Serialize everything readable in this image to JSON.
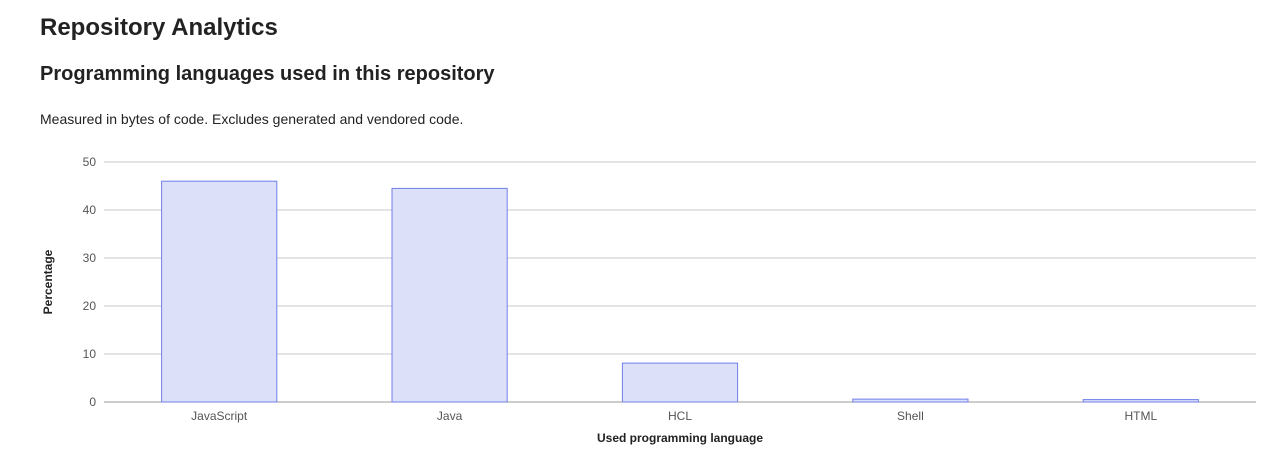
{
  "page": {
    "title": "Repository Analytics",
    "section_title": "Programming languages used in this repository",
    "description": "Measured in bytes of code. Excludes generated and vendored code."
  },
  "colors": {
    "bar_fill": "#dde0f9",
    "bar_stroke": "#6f7fe8",
    "gridline": "#c8c8c8",
    "tick_text": "#555555"
  },
  "chart_data": {
    "type": "bar",
    "title": "",
    "xlabel": "Used programming language",
    "ylabel": "Percentage",
    "categories": [
      "JavaScript",
      "Java",
      "HCL",
      "Shell",
      "HTML"
    ],
    "values": [
      46.0,
      44.5,
      8.1,
      0.6,
      0.5
    ],
    "ylim": [
      0,
      50
    ],
    "yticks": [
      0,
      10,
      20,
      30,
      40,
      50
    ],
    "grid": true,
    "legend": "none"
  }
}
